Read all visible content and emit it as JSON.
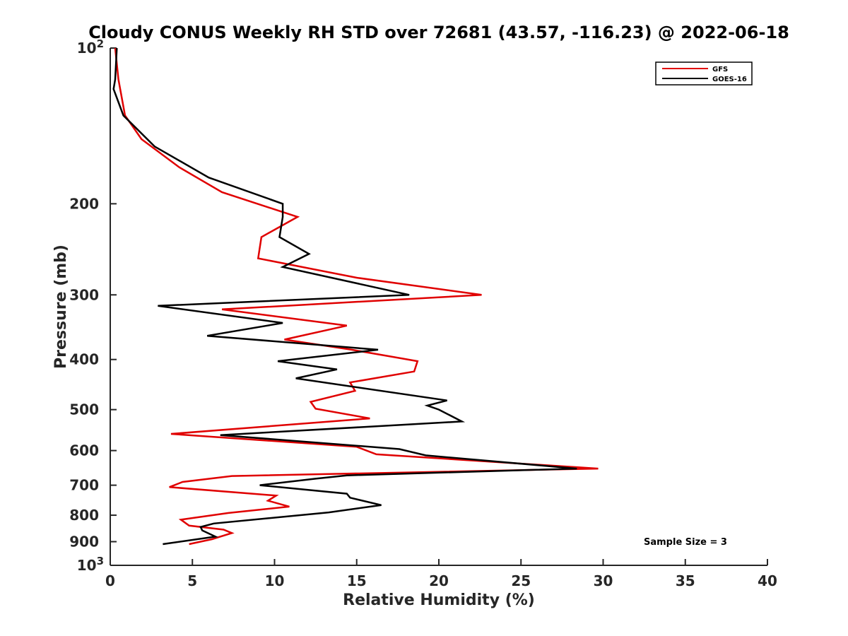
{
  "chart_data": {
    "type": "line",
    "title": "Cloudy CONUS Weekly RH STD over 72681 (43.57, -116.23) @ 2022-06-18",
    "xlabel": "Relative Humidity (%)",
    "ylabel": "Pressure (mb)",
    "xlim": [
      0,
      40
    ],
    "ylim": [
      100,
      1000
    ],
    "y_scale": "log",
    "y_reversed": true,
    "x_ticks": [
      "0",
      "5",
      "10",
      "15",
      "20",
      "25",
      "30",
      "35",
      "40"
    ],
    "y_ticks": [
      {
        "value": 100,
        "base": "10",
        "exp": "2"
      },
      {
        "value": 200,
        "label": "200"
      },
      {
        "value": 300,
        "label": "300"
      },
      {
        "value": 400,
        "label": "400"
      },
      {
        "value": 500,
        "label": "500"
      },
      {
        "value": 600,
        "label": "600"
      },
      {
        "value": 700,
        "label": "700"
      },
      {
        "value": 800,
        "label": "800"
      },
      {
        "value": 900,
        "label": "900"
      },
      {
        "value": 1000,
        "base": "10",
        "exp": "3"
      }
    ],
    "legend_position": "top-right",
    "annotation": "Sample Size = 3",
    "series": [
      {
        "name": "GFS",
        "color": "#e00000",
        "points": [
          [
            0.3,
            100
          ],
          [
            0.5,
            115
          ],
          [
            0.9,
            135
          ],
          [
            1.9,
            150
          ],
          [
            4.2,
            170
          ],
          [
            6.8,
            190
          ],
          [
            11.4,
            212
          ],
          [
            9.2,
            232
          ],
          [
            9.0,
            255
          ],
          [
            15.0,
            278
          ],
          [
            22.6,
            300
          ],
          [
            6.8,
            320
          ],
          [
            14.4,
            344
          ],
          [
            10.6,
            366
          ],
          [
            14.7,
            383
          ],
          [
            18.7,
            403
          ],
          [
            18.5,
            422
          ],
          [
            14.6,
            443
          ],
          [
            14.9,
            460
          ],
          [
            12.2,
            483
          ],
          [
            12.5,
            498
          ],
          [
            15.8,
            520
          ],
          [
            3.7,
            557
          ],
          [
            15.0,
            590
          ],
          [
            16.2,
            610
          ],
          [
            29.7,
            650
          ],
          [
            7.4,
            672
          ],
          [
            4.4,
            690
          ],
          [
            3.6,
            706
          ],
          [
            10.1,
            733
          ],
          [
            9.6,
            750
          ],
          [
            10.9,
            770
          ],
          [
            7.2,
            792
          ],
          [
            4.3,
            816
          ],
          [
            4.8,
            838
          ],
          [
            6.9,
            853
          ],
          [
            7.4,
            866
          ],
          [
            6.2,
            890
          ],
          [
            4.8,
            910
          ]
        ]
      },
      {
        "name": "GOES-16",
        "color": "#000000",
        "points": [
          [
            0.4,
            100
          ],
          [
            0.3,
            115
          ],
          [
            0.2,
            120
          ],
          [
            0.8,
            135
          ],
          [
            2.7,
            155
          ],
          [
            6.0,
            178
          ],
          [
            10.5,
            200
          ],
          [
            10.5,
            212
          ],
          [
            10.3,
            232
          ],
          [
            12.1,
            250
          ],
          [
            10.5,
            265
          ],
          [
            18.2,
            300
          ],
          [
            2.9,
            315
          ],
          [
            10.5,
            340
          ],
          [
            5.9,
            360
          ],
          [
            16.3,
            383
          ],
          [
            10.2,
            403
          ],
          [
            13.8,
            418
          ],
          [
            11.3,
            435
          ],
          [
            20.5,
            480
          ],
          [
            19.3,
            491
          ],
          [
            20.0,
            500
          ],
          [
            21.4,
            527
          ],
          [
            6.7,
            560
          ],
          [
            17.6,
            596
          ],
          [
            19.2,
            613
          ],
          [
            28.4,
            650
          ],
          [
            14.4,
            670
          ],
          [
            12.5,
            680
          ],
          [
            9.1,
            700
          ],
          [
            14.4,
            727
          ],
          [
            14.6,
            740
          ],
          [
            16.5,
            765
          ],
          [
            13.3,
            790
          ],
          [
            6.3,
            830
          ],
          [
            5.5,
            843
          ],
          [
            5.6,
            856
          ],
          [
            6.4,
            880
          ],
          [
            3.2,
            910
          ]
        ]
      }
    ]
  }
}
